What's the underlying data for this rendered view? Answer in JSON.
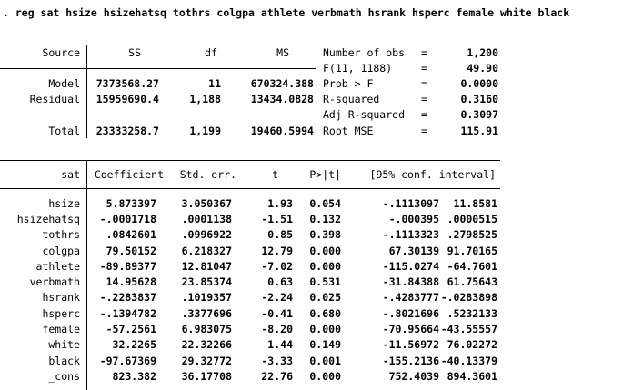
{
  "command": ". reg sat hsize hsizehatsq tothrs colgpa athlete verbmath hsrank hsperc female white black",
  "anova": {
    "headers": {
      "source": "Source",
      "ss": "SS",
      "df": "df",
      "ms": "MS"
    },
    "rows": [
      {
        "source": "Model",
        "ss": "7373568.27",
        "df": "11",
        "ms": "670324.388"
      },
      {
        "source": "Residual",
        "ss": "15959690.4",
        "df": "1,188",
        "ms": "13434.0828"
      },
      {
        "source": "Total",
        "ss": "23333258.7",
        "df": "1,199",
        "ms": "19460.5994"
      }
    ]
  },
  "stats": {
    "rows": [
      {
        "label": "Number of obs",
        "eq": "=",
        "value": "1,200"
      },
      {
        "label": "F(11, 1188)",
        "eq": "=",
        "value": "49.90"
      },
      {
        "label": "Prob > F",
        "eq": "=",
        "value": "0.0000"
      },
      {
        "label": "R-squared",
        "eq": "=",
        "value": "0.3160"
      },
      {
        "label": "Adj R-squared",
        "eq": "=",
        "value": "0.3097"
      },
      {
        "label": "Root MSE",
        "eq": "=",
        "value": "115.91"
      }
    ]
  },
  "coef_table": {
    "depvar": "sat",
    "headers": {
      "coef": "Coefficient",
      "se": "Std. err.",
      "t": "t",
      "p": "P>|t|",
      "ci": "[95% conf. interval]"
    },
    "rows": [
      {
        "name": "hsize",
        "coef": "5.873397",
        "se": "3.050367",
        "t": "1.93",
        "p": "0.054",
        "lo": "-.1113097",
        "hi": "11.8581"
      },
      {
        "name": "hsizehatsq",
        "coef": "-.0001718",
        "se": ".0001138",
        "t": "-1.51",
        "p": "0.132",
        "lo": "-.000395",
        "hi": ".0000515"
      },
      {
        "name": "tothrs",
        "coef": ".0842601",
        "se": ".0996922",
        "t": "0.85",
        "p": "0.398",
        "lo": "-.1113323",
        "hi": ".2798525"
      },
      {
        "name": "colgpa",
        "coef": "79.50152",
        "se": "6.218327",
        "t": "12.79",
        "p": "0.000",
        "lo": "67.30139",
        "hi": "91.70165"
      },
      {
        "name": "athlete",
        "coef": "-89.89377",
        "se": "12.81047",
        "t": "-7.02",
        "p": "0.000",
        "lo": "-115.0274",
        "hi": "-64.7601"
      },
      {
        "name": "verbmath",
        "coef": "14.95628",
        "se": "23.85374",
        "t": "0.63",
        "p": "0.531",
        "lo": "-31.84388",
        "hi": "61.75643"
      },
      {
        "name": "hsrank",
        "coef": "-.2283837",
        "se": ".1019357",
        "t": "-2.24",
        "p": "0.025",
        "lo": "-.4283777",
        "hi": "-.0283898"
      },
      {
        "name": "hsperc",
        "coef": "-.1394782",
        "se": ".3377696",
        "t": "-0.41",
        "p": "0.680",
        "lo": "-.8021696",
        "hi": ".5232133"
      },
      {
        "name": "female",
        "coef": "-57.2561",
        "se": "6.983075",
        "t": "-8.20",
        "p": "0.000",
        "lo": "-70.95664",
        "hi": "-43.55557"
      },
      {
        "name": "white",
        "coef": "32.2265",
        "se": "22.32266",
        "t": "1.44",
        "p": "0.149",
        "lo": "-11.56972",
        "hi": "76.02272"
      },
      {
        "name": "black",
        "coef": "-97.67369",
        "se": "29.32772",
        "t": "-3.33",
        "p": "0.001",
        "lo": "-155.2136",
        "hi": "-40.13379"
      },
      {
        "name": "_cons",
        "coef": "823.382",
        "se": "36.17708",
        "t": "22.76",
        "p": "0.000",
        "lo": "752.4039",
        "hi": "894.3601"
      }
    ]
  }
}
